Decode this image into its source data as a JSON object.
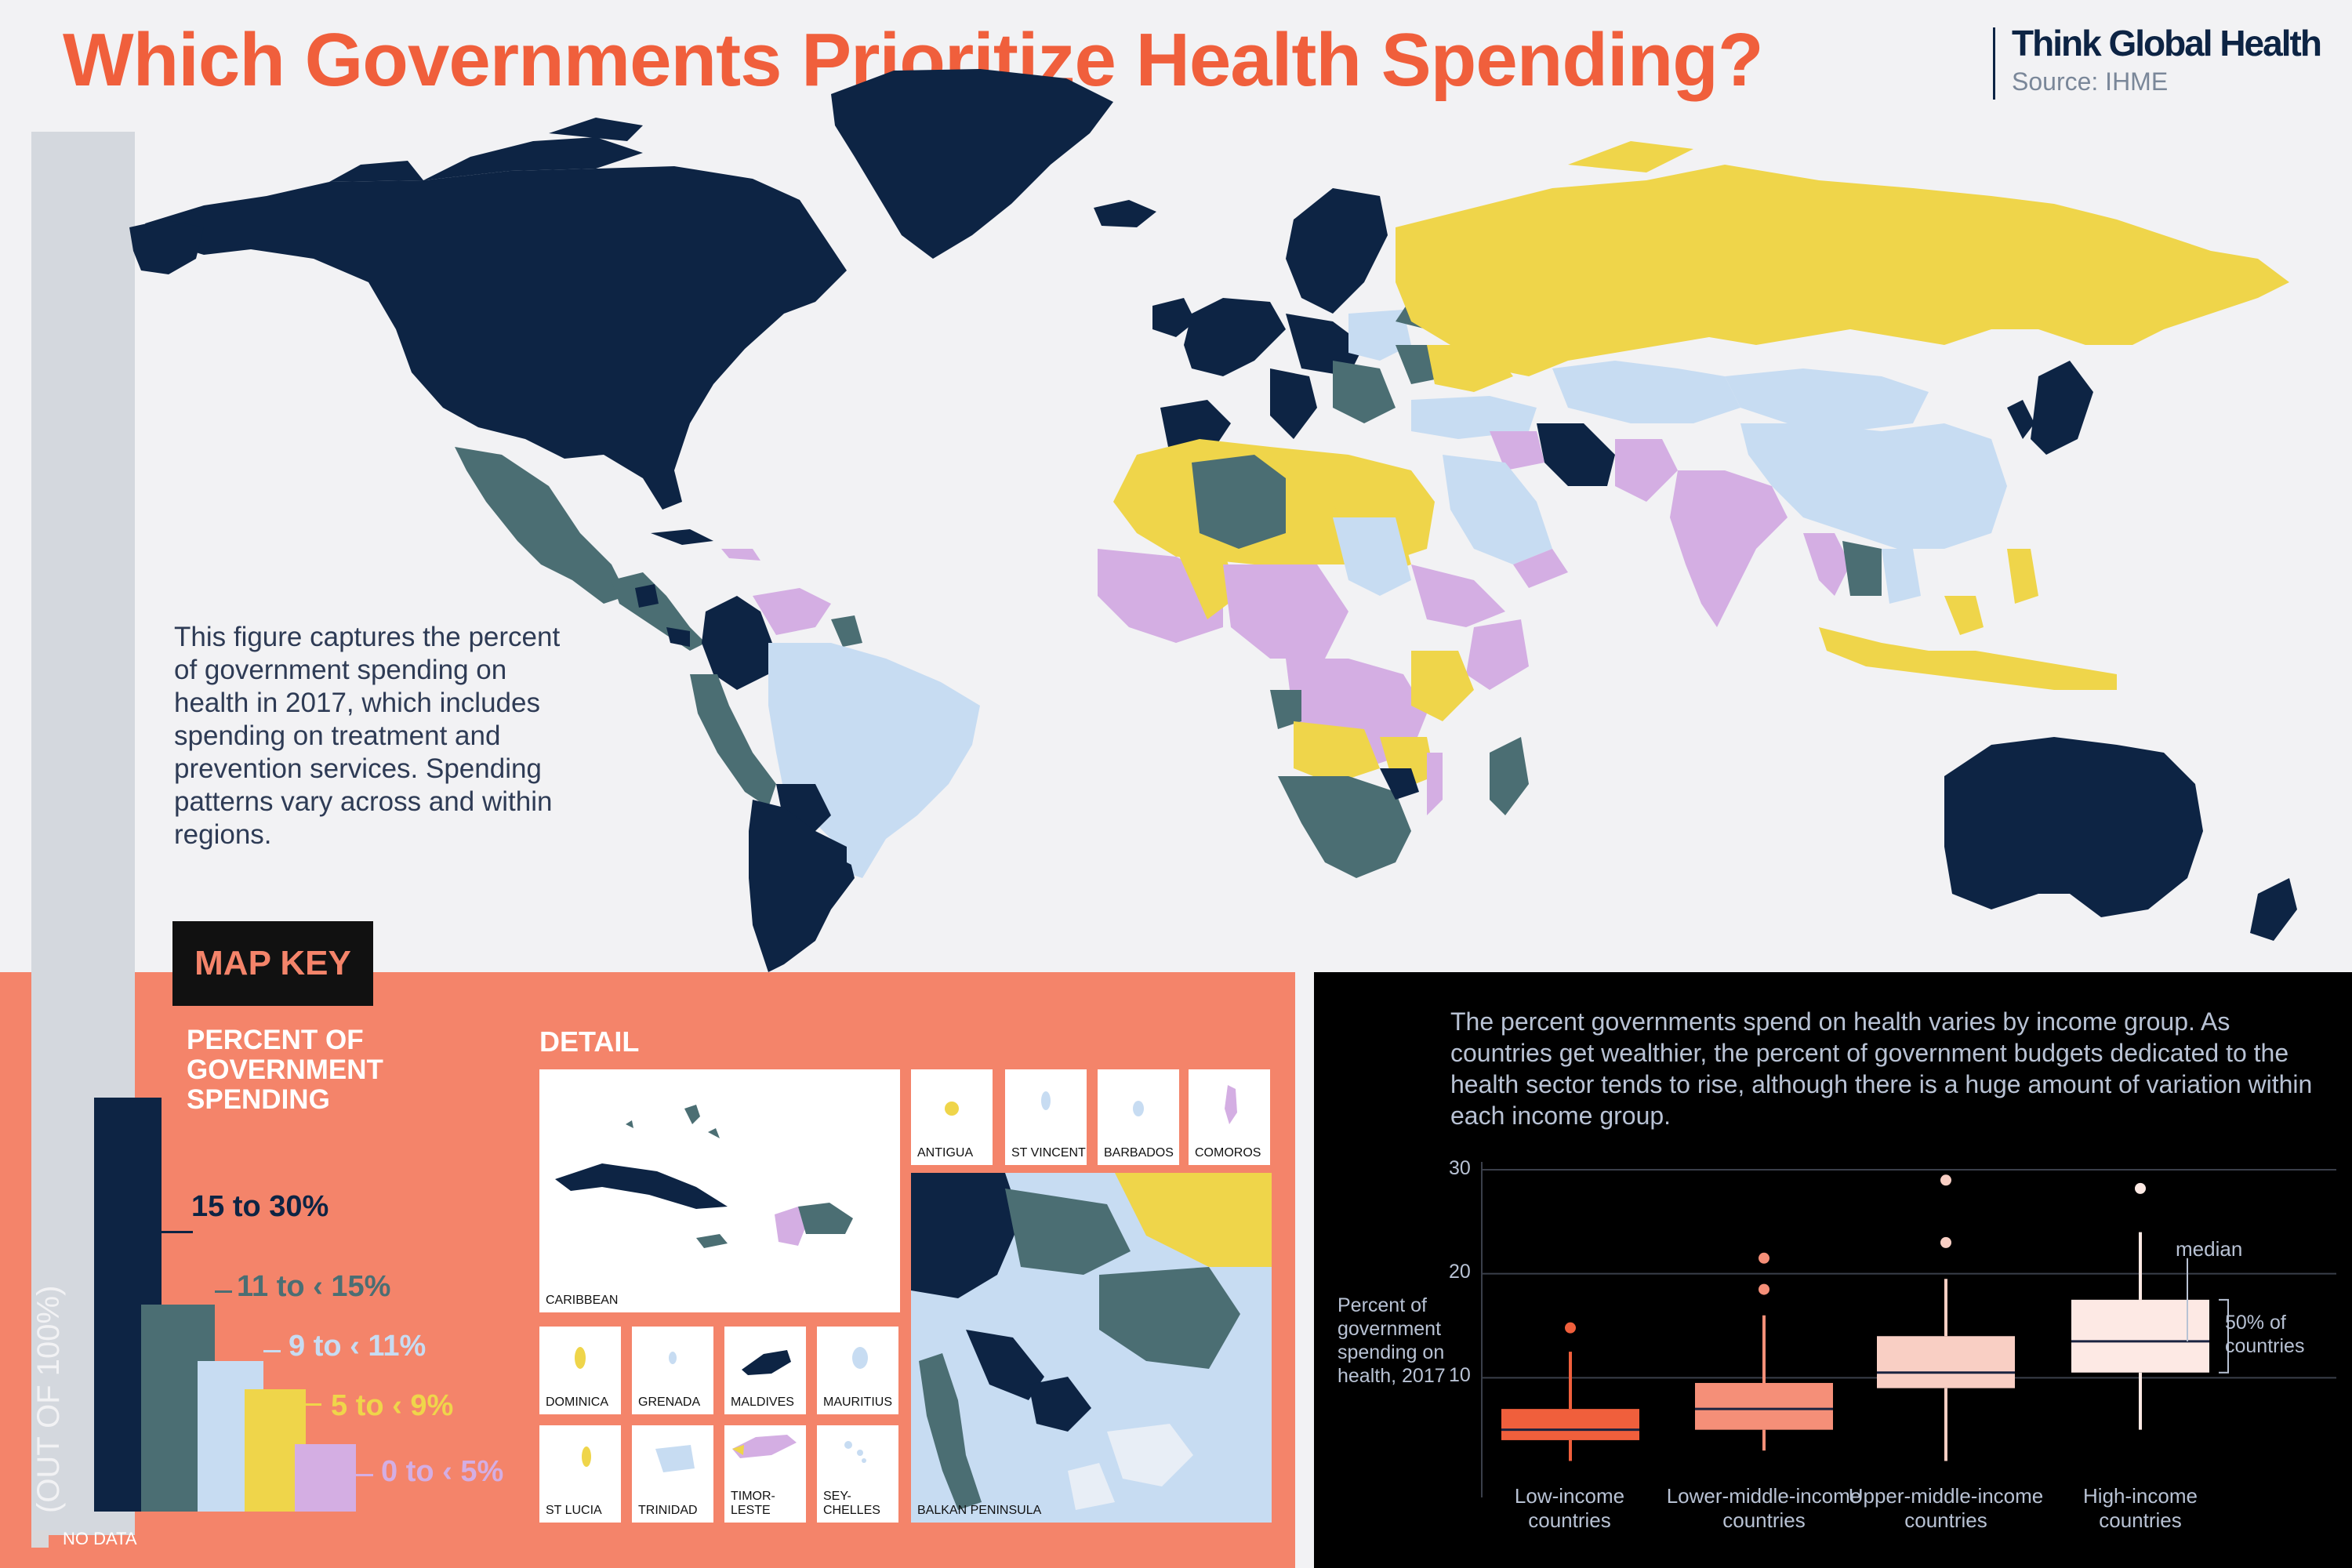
{
  "header": {
    "title": "Which Governments Prioritize Health Spending?",
    "brand": "Think Global Health",
    "source": "Source: IHME"
  },
  "intro_text": "This figure captures the percent of government spending on health in 2017, which includes spending on treatment and prevention services. Spending patterns vary across and within regions.",
  "colors": {
    "c15_30": "#0d2444",
    "c11_15": "#4b6e73",
    "c9_11": "#c7dcf2",
    "c5_9": "#efd54a",
    "c0_5": "#d4aee3",
    "no_data": "#d8d8da",
    "panel_salmon": "#f4846a",
    "title": "#f05f3c"
  },
  "map_key": {
    "title": "MAP KEY",
    "subtitle": "PERCENT OF GOVERNMENT SPENDING",
    "scale_label": "(OUT OF 100%)",
    "no_data": "NO DATA",
    "levels": [
      {
        "label": "15 to 30%",
        "color": "#0d2444",
        "label_color": "#0d2444"
      },
      {
        "label": "11 to ‹ 15%",
        "color": "#4b6e73",
        "label_color": "#4b6e73"
      },
      {
        "label": "9 to ‹ 11%",
        "color": "#c7dcf2",
        "label_color": "#c7dcf2"
      },
      {
        "label": "5 to ‹ 9%",
        "color": "#efd54a",
        "label_color": "#efd54a"
      },
      {
        "label": "0 to ‹ 5%",
        "color": "#d4aee3",
        "label_color": "#d4aee3"
      }
    ]
  },
  "detail": {
    "title": "DETAIL",
    "insets": [
      {
        "label": "CARIBBEAN"
      },
      {
        "label": "ANTIGUA"
      },
      {
        "label": "ST VINCENT"
      },
      {
        "label": "BARBADOS"
      },
      {
        "label": "COMOROS"
      },
      {
        "label": "BALKAN PENINSULA"
      },
      {
        "label": "DOMINICA"
      },
      {
        "label": "GRENADA"
      },
      {
        "label": "MALDIVES"
      },
      {
        "label": "MAURITIUS"
      },
      {
        "label": "ST LUCIA"
      },
      {
        "label": "TRINIDAD"
      },
      {
        "label": "TIMOR-LESTE"
      },
      {
        "label": "SEY-CHELLES"
      }
    ]
  },
  "income_chart": {
    "description": "The percent governments spend on health varies by income group. As countries get wealthier, the percent of government budgets dedicated to the health sector tends to rise, although there is a huge amount of variation within each income group.",
    "ylabel": "Percent of government spending on health, 2017",
    "median_label": "median",
    "iqr_label": "50% of countries",
    "y_ticks": [
      "30",
      "20",
      "10"
    ]
  },
  "chart_data": {
    "type": "box",
    "title": "",
    "xlabel": "",
    "ylabel": "Percent of government spending on health, 2017",
    "ylim": [
      0,
      30
    ],
    "yticks": [
      10,
      20,
      30
    ],
    "grid": true,
    "categories": [
      "Low-income countries",
      "Lower-middle-income countries",
      "Upper-middle-income countries",
      "High-income countries"
    ],
    "series": [
      {
        "category": "Low-income countries",
        "whisker_low": 2,
        "q1": 4,
        "median": 5,
        "q3": 7,
        "whisker_high": 12.5,
        "outliers": [
          14.8
        ],
        "color": "#f05f3c"
      },
      {
        "category": "Lower-middle-income countries",
        "whisker_low": 3,
        "q1": 5,
        "median": 7,
        "q3": 9.5,
        "whisker_high": 16,
        "outliers": [
          18.5,
          21.5
        ],
        "color": "#f58f78"
      },
      {
        "category": "Upper-middle-income countries",
        "whisker_low": 2,
        "q1": 9,
        "median": 10.5,
        "q3": 14,
        "whisker_high": 19.5,
        "outliers": [
          23,
          29
        ],
        "color": "#f9cfc4"
      },
      {
        "category": "High-income countries",
        "whisker_low": 5,
        "q1": 10.5,
        "median": 13.5,
        "q3": 17.5,
        "whisker_high": 24,
        "outliers": [
          28.2
        ],
        "color": "#fde9e4"
      }
    ]
  }
}
